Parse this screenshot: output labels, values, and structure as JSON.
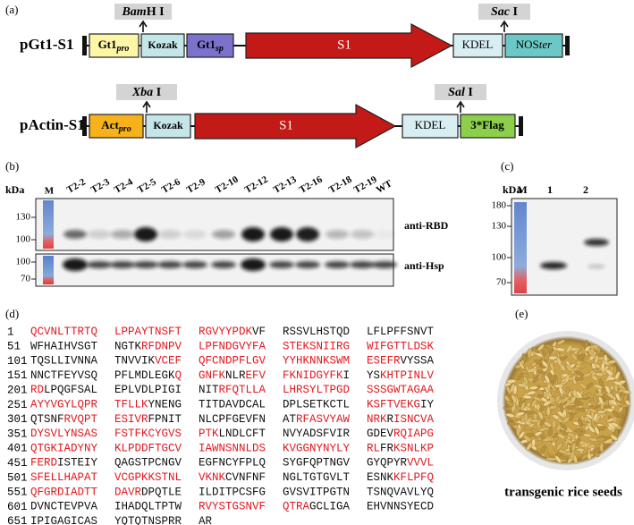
{
  "panel_a": {
    "label": "(a)",
    "constructs": [
      {
        "name": "pGt1-S1",
        "elements": [
          {
            "text": "Gt1",
            "sub": "pro"
          },
          {
            "text": "Kozak"
          },
          {
            "text": "Gt1",
            "sub": "sp"
          },
          {
            "text": "S1"
          },
          {
            "text": "KDEL"
          },
          {
            "text": "NOS",
            "suffix": "ter"
          }
        ],
        "sites": [
          {
            "italic": "Bam",
            "text": "H I"
          },
          {
            "italic": "Sac",
            "text": " I"
          }
        ]
      },
      {
        "name": "pActin-S1",
        "elements": [
          {
            "text": "Act",
            "sub": "pro"
          },
          {
            "text": "Kozak"
          },
          {
            "text": "S1"
          },
          {
            "text": "KDEL"
          },
          {
            "text": "3*Flag"
          }
        ],
        "sites": [
          {
            "italic": "Xba",
            "text": " I"
          },
          {
            "italic": "Sal",
            "text": " I"
          }
        ]
      }
    ]
  },
  "panel_b": {
    "label": "(b)",
    "unit": "kDa",
    "lanes": [
      "M",
      "T2-2",
      "T2-3",
      "T2-4",
      "T2-5",
      "T2-6",
      "T2-9",
      "T2-10",
      "T2-12",
      "T2-13",
      "T2-16",
      "T2-18",
      "T2-19",
      "WT"
    ],
    "blots": [
      {
        "antibody": "anti-RBD",
        "markers": [
          130,
          100
        ]
      },
      {
        "antibody": "anti-Hsp",
        "markers": [
          100,
          70
        ]
      }
    ]
  },
  "panel_c": {
    "label": "(c)",
    "unit": "kDa",
    "lanes": [
      "M",
      "1",
      "2"
    ],
    "markers": [
      180,
      130,
      100,
      70
    ]
  },
  "panel_d": {
    "label": "(d)",
    "rows": [
      {
        "number": "1",
        "blocks": [
          [
            {
              "text": "QCVNLTTRTQ",
              "red": true
            }
          ],
          [
            {
              "text": "LPPAYTNSFT",
              "red": true
            }
          ],
          [
            {
              "text": "RGVYYPDK",
              "red": true
            },
            {
              "text": "VF"
            }
          ],
          [
            {
              "text": "RSSVLHSTQD"
            }
          ],
          [
            {
              "text": "LFLPFFSNVT"
            }
          ]
        ]
      },
      {
        "number": "51",
        "blocks": [
          [
            {
              "text": "WFHAIHVSGT"
            }
          ],
          [
            {
              "text": "NGTK"
            },
            {
              "text": "RFDNPV",
              "red": true
            }
          ],
          [
            {
              "text": "LPFNDGVYFA",
              "red": true
            }
          ],
          [
            {
              "text": "STEKSNIIRG",
              "red": true
            }
          ],
          [
            {
              "text": "WIFGTTLDSK",
              "red": true
            }
          ]
        ]
      },
      {
        "number": "101",
        "blocks": [
          [
            {
              "text": "TQSLLIVNNA"
            }
          ],
          [
            {
              "text": "TNVVIK"
            },
            {
              "text": "VCEF",
              "red": true
            }
          ],
          [
            {
              "text": "QFCNDPFLGV",
              "red": true
            }
          ],
          [
            {
              "text": "YYHKNNKSWM",
              "red": true
            }
          ],
          [
            {
              "text": "ESEFR",
              "red": true
            },
            {
              "text": "VYSSA"
            }
          ]
        ]
      },
      {
        "number": "151",
        "blocks": [
          [
            {
              "text": "NNCTFEYVSQ"
            }
          ],
          [
            {
              "text": "PFLMDLEGK"
            },
            {
              "text": "Q",
              "red": true
            }
          ],
          [
            {
              "text": "GNFK",
              "red": true
            },
            {
              "text": "NLR"
            },
            {
              "text": "EFV",
              "red": true
            }
          ],
          [
            {
              "text": "FKNIDGYFK",
              "red": true
            },
            {
              "text": "I"
            }
          ],
          [
            {
              "text": "YS"
            },
            {
              "text": "KHTPINLV",
              "red": true
            }
          ]
        ]
      },
      {
        "number": "201",
        "blocks": [
          [
            {
              "text": "RD",
              "red": true
            },
            {
              "text": "LPQGFSAL"
            }
          ],
          [
            {
              "text": "EPLVDLPIGI"
            }
          ],
          [
            {
              "text": "NIT"
            },
            {
              "text": "RFQTLLA",
              "red": true
            }
          ],
          [
            {
              "text": "LHRSYLTPGD",
              "red": true
            }
          ],
          [
            {
              "text": "SSSGWTAGAA",
              "red": true
            }
          ]
        ]
      },
      {
        "number": "251",
        "blocks": [
          [
            {
              "text": "AYYVGYLQPR",
              "red": true
            }
          ],
          [
            {
              "text": "TFLLK",
              "red": true
            },
            {
              "text": "YNENG"
            }
          ],
          [
            {
              "text": "TITDAVDCAL"
            }
          ],
          [
            {
              "text": "DPLSETKCTL"
            }
          ],
          [
            {
              "text": "KSFTVEKG",
              "red": true
            },
            {
              "text": "IY"
            }
          ]
        ]
      },
      {
        "number": "301",
        "blocks": [
          [
            {
              "text": "QTSNF"
            },
            {
              "text": "RVQPT",
              "red": true
            }
          ],
          [
            {
              "text": "ESIVR",
              "red": true
            },
            {
              "text": "FPNIT"
            }
          ],
          [
            {
              "text": "NLCPFGEVFN"
            }
          ],
          [
            {
              "text": "AT"
            },
            {
              "text": "RFASVYAW",
              "red": true
            }
          ],
          [
            {
              "text": "NRK",
              "red": true
            },
            {
              "text": "R"
            },
            {
              "text": "ISNCVA",
              "red": true
            }
          ]
        ]
      },
      {
        "number": "351",
        "blocks": [
          [
            {
              "text": "DYSVLYNSAS",
              "red": true
            }
          ],
          [
            {
              "text": "FSTFKCYGVS",
              "red": true
            }
          ],
          [
            {
              "text": "PTK",
              "red": true
            },
            {
              "text": "LNDLCFT"
            }
          ],
          [
            {
              "text": "NVYADSFVIR"
            }
          ],
          [
            {
              "text": "GDEV"
            },
            {
              "text": "RQIAPG",
              "red": true
            }
          ]
        ]
      },
      {
        "number": "401",
        "blocks": [
          [
            {
              "text": "QTGKIADYNY",
              "red": true
            }
          ],
          [
            {
              "text": "KLPDDFTGCV",
              "red": true
            }
          ],
          [
            {
              "text": "IAWNSNNLDS",
              "red": true
            }
          ],
          [
            {
              "text": "KVGGNYNYLY",
              "red": true
            }
          ],
          [
            {
              "text": "RL",
              "red": true
            },
            {
              "text": "FR"
            },
            {
              "text": "KSNLKP",
              "red": true
            }
          ]
        ]
      },
      {
        "number": "451",
        "blocks": [
          [
            {
              "text": "FERD",
              "red": true
            },
            {
              "text": "ISTEIY"
            }
          ],
          [
            {
              "text": "QAGSTPCNGV"
            }
          ],
          [
            {
              "text": "EGFNCYFPLQ"
            }
          ],
          [
            {
              "text": "SYGFQPTNGV"
            }
          ],
          [
            {
              "text": "GYQPYR"
            },
            {
              "text": "VVVL",
              "red": true
            }
          ]
        ]
      },
      {
        "number": "501",
        "blocks": [
          [
            {
              "text": "SFELLHAPAT",
              "red": true
            }
          ],
          [
            {
              "text": "VCGPKKSTNL",
              "red": true
            }
          ],
          [
            {
              "text": "VKNK",
              "red": true
            },
            {
              "text": "CVNFNF"
            }
          ],
          [
            {
              "text": "NGLTGTGVLT"
            }
          ],
          [
            {
              "text": "ESNK"
            },
            {
              "text": "KFLPFQ",
              "red": true
            }
          ]
        ]
      },
      {
        "number": "551",
        "blocks": [
          [
            {
              "text": "QFGRDIADTT",
              "red": true
            }
          ],
          [
            {
              "text": "DAVR",
              "red": true
            },
            {
              "text": "DPQTLE"
            }
          ],
          [
            {
              "text": "ILDITPCSFG"
            }
          ],
          [
            {
              "text": "GVSVITPGTN"
            }
          ],
          [
            {
              "text": "TSNQVAVLYQ"
            }
          ]
        ]
      },
      {
        "number": "601",
        "blocks": [
          [
            {
              "text": "DVNCTEVPVA"
            }
          ],
          [
            {
              "text": "IHADQLTPTW"
            }
          ],
          [
            {
              "text": "RVYSTGSNVF",
              "red": true
            }
          ],
          [
            {
              "text": "QTRA",
              "red": true
            },
            {
              "text": "GCLIGA"
            }
          ],
          [
            {
              "text": "EHVNNSYECD"
            }
          ]
        ]
      },
      {
        "number": "651",
        "blocks": [
          [
            {
              "text": "IPIGAGICAS"
            }
          ],
          [
            {
              "text": "YQTQTNSPRR"
            }
          ],
          [
            {
              "text": "AR"
            }
          ]
        ]
      }
    ]
  },
  "panel_e": {
    "label": "(e)",
    "caption": "transgenic rice seeds"
  }
}
